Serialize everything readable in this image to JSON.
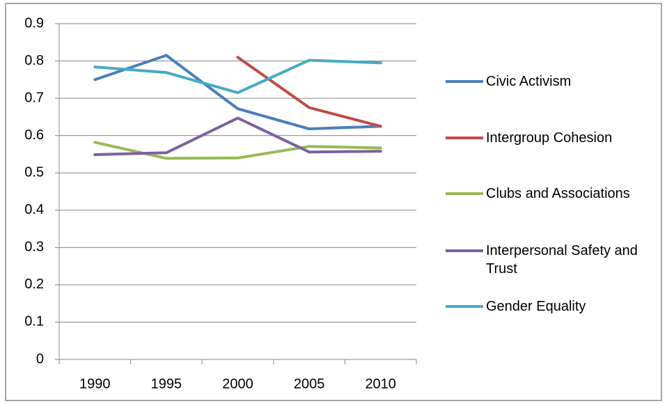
{
  "chart_data": {
    "type": "line",
    "categories": [
      "1990",
      "1995",
      "2000",
      "2005",
      "2010"
    ],
    "series": [
      {
        "name": "Civic Activism",
        "color": "#4a7ebb",
        "values": [
          0.75,
          0.815,
          0.672,
          0.618,
          0.625
        ]
      },
      {
        "name": "Intergroup Cohesion",
        "color": "#be4b48",
        "values": [
          null,
          null,
          0.81,
          0.675,
          0.625
        ]
      },
      {
        "name": "Clubs and Associations",
        "color": "#98b954",
        "values": [
          0.582,
          0.539,
          0.54,
          0.571,
          0.567
        ]
      },
      {
        "name": "Interpersonal Safety and Trust",
        "color": "#7d60a0",
        "values": [
          0.549,
          0.554,
          0.647,
          0.556,
          0.558
        ]
      },
      {
        "name": "Gender Equality",
        "color": "#46aac5",
        "values": [
          0.784,
          0.769,
          0.715,
          0.802,
          0.795
        ]
      }
    ],
    "ylim": [
      0,
      0.9
    ],
    "yticks": [
      0,
      0.1,
      0.2,
      0.3,
      0.4,
      0.5,
      0.6,
      0.7,
      0.8,
      0.9
    ],
    "grid": true,
    "legend": "right"
  }
}
